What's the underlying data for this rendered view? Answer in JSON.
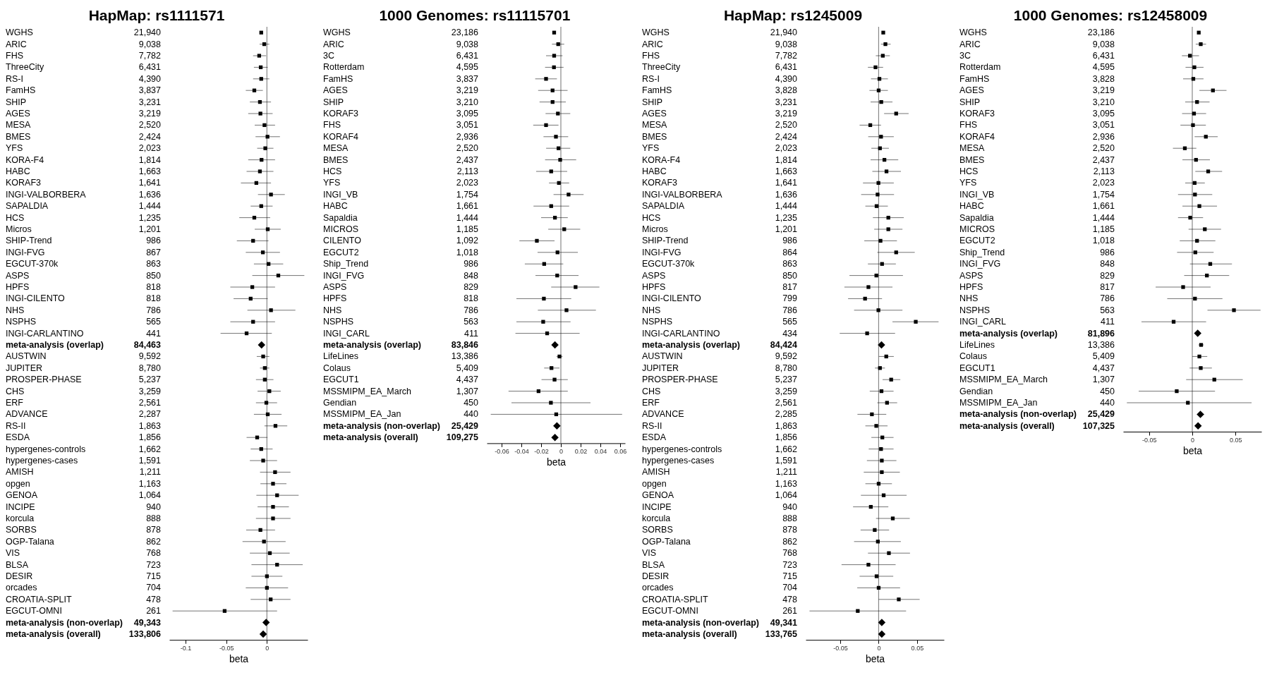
{
  "chart_data": [
    {
      "type": "scatter",
      "orientation": "horizontal",
      "title": "HapMap: rs1111571",
      "xlabel": "beta",
      "xlim": [
        -0.12,
        0.05
      ],
      "xticks": [
        -0.1,
        -0.05,
        0
      ],
      "ref_lines": [
        {
          "axis": "x",
          "value": 0,
          "color": "#888888"
        }
      ],
      "categories": [
        "WGHS",
        "ARIC",
        "FHS",
        "ThreeCity",
        "RS-I",
        "FamHS",
        "SHIP",
        "AGES",
        "MESA",
        "BMES",
        "YFS",
        "KORA-F4",
        "HABC",
        "KORAF3",
        "INGI-VALBORBERA",
        "SAPALDIA",
        "HCS",
        "Micros",
        "SHIP-Trend",
        "INGI-FVG",
        "EGCUT-370k",
        "ASPS",
        "HPFS",
        "INGI-CILENTO",
        "NHS",
        "NSPHS",
        "INGI-CARLANTINO",
        "meta-analysis (overlap)",
        "AUSTWIN",
        "JUPITER",
        "PROSPER-PHASE",
        "CHS",
        "ERF",
        "ADVANCE",
        "RS-II",
        "ESDA",
        "hypergenes-controls",
        "hypergenes-cases",
        "AMISH",
        "opgen",
        "GENOA",
        "INCIPE",
        "korcula",
        "SORBS",
        "OGP-Talana",
        "VIS",
        "BLSA",
        "DESIR",
        "orcades",
        "CROATIA-SPLIT",
        "EGCUT-OMNI",
        "meta-analysis (non-overlap)",
        "meta-analysis (overall)"
      ],
      "y2_categories": [
        "21,940",
        "9,038",
        "7,782",
        "6,431",
        "4,390",
        "3,837",
        "3,231",
        "3,219",
        "2,520",
        "2,424",
        "2,023",
        "1,814",
        "1,663",
        "1,641",
        "1,636",
        "1,444",
        "1,235",
        "1,201",
        "986",
        "867",
        "863",
        "850",
        "818",
        "818",
        "786",
        "565",
        "441",
        "84,463",
        "9,592",
        "8,780",
        "5,237",
        "3,259",
        "2,561",
        "2,287",
        "1,863",
        "1,856",
        "1,662",
        "1,591",
        "1,211",
        "1,163",
        "1,064",
        "940",
        "888",
        "878",
        "862",
        "768",
        "723",
        "715",
        "704",
        "478",
        "261",
        "49,343",
        "133,806"
      ],
      "series": [
        {
          "color": "#000000",
          "marker": "square",
          "values": [
            -0.007,
            -0.0033,
            -0.0095,
            -0.0076,
            -0.007,
            -0.0155,
            -0.0086,
            -0.008,
            -0.003,
            0.0007,
            -0.002,
            -0.0066,
            -0.0086,
            -0.013,
            0.005,
            -0.007,
            -0.0155,
            0.001,
            -0.017,
            -0.005,
            0.002,
            0.014,
            -0.018,
            -0.02,
            0.005,
            -0.017,
            -0.025,
            null,
            -0.0046,
            -0.0026,
            -0.0026,
            0.003,
            -0.0007,
            0.001,
            0.0105,
            -0.012,
            -0.007,
            -0.0046,
            0.01,
            0.0075,
            0.0125,
            0.0075,
            0.0075,
            -0.008,
            -0.0036,
            0.0036,
            0.0125,
            0,
            0,
            0.0046,
            -0.052,
            null,
            null
          ],
          "errors": [
            null,
            [
              -0.009,
              0.003
            ],
            [
              -0.017,
              -0.001
            ],
            [
              -0.016,
              0.001
            ],
            [
              -0.017,
              0.003
            ],
            [
              -0.026,
              -0.005
            ],
            [
              -0.021,
              0.005
            ],
            [
              -0.023,
              0.007
            ],
            [
              -0.015,
              0.01
            ],
            [
              -0.014,
              0.016
            ],
            [
              -0.012,
              0.008
            ],
            [
              -0.023,
              0.01
            ],
            [
              -0.025,
              0.008
            ],
            [
              -0.032,
              0.005
            ],
            [
              -0.011,
              0.022
            ],
            [
              -0.02,
              0.007
            ],
            [
              -0.034,
              0.004
            ],
            [
              -0.015,
              0.017
            ],
            [
              -0.037,
              0.002
            ],
            [
              -0.026,
              0.016
            ],
            [
              -0.016,
              0.02
            ],
            [
              -0.018,
              0.046
            ],
            [
              -0.045,
              0.01
            ],
            [
              -0.041,
              0.001
            ],
            [
              -0.024,
              0.035
            ],
            [
              -0.045,
              0.01
            ],
            [
              -0.057,
              0.006
            ],
            null,
            [
              -0.0125,
              0.003
            ],
            [
              -0.0085,
              0.003
            ],
            [
              -0.0135,
              0.008
            ],
            [
              -0.0115,
              0.017
            ],
            [
              -0.0135,
              0.0125
            ],
            [
              -0.016,
              0.018
            ],
            [
              -0.003,
              0.025
            ],
            [
              -0.025,
              0.0007
            ],
            [
              -0.02,
              0.007
            ],
            [
              -0.021,
              0.0125
            ],
            [
              -0.0085,
              0.029
            ],
            [
              -0.008,
              0.024
            ],
            [
              -0.013,
              0.039
            ],
            [
              -0.0115,
              0.027
            ],
            [
              -0.0135,
              0.029
            ],
            [
              -0.0255,
              0.01
            ],
            [
              -0.03,
              0.023
            ],
            [
              -0.021,
              0.028
            ],
            [
              -0.019,
              0.044
            ],
            [
              -0.019,
              0.019
            ],
            [
              -0.026,
              0.026
            ],
            [
              -0.02,
              0.029
            ],
            [
              -0.116,
              0.0125
            ],
            null,
            null
          ]
        },
        {
          "color": "#000000",
          "marker": "diamond",
          "values": [
            null,
            null,
            null,
            null,
            null,
            null,
            null,
            null,
            null,
            null,
            null,
            null,
            null,
            null,
            null,
            null,
            null,
            null,
            null,
            null,
            null,
            null,
            null,
            null,
            null,
            null,
            null,
            -0.0066,
            null,
            null,
            null,
            null,
            null,
            null,
            null,
            null,
            null,
            null,
            null,
            null,
            null,
            null,
            null,
            null,
            null,
            null,
            null,
            null,
            null,
            null,
            null,
            -0.001,
            -0.0046
          ],
          "errors": [
            null,
            null,
            null,
            null,
            null,
            null,
            null,
            null,
            null,
            null,
            null,
            null,
            null,
            null,
            null,
            null,
            null,
            null,
            null,
            null,
            null,
            null,
            null,
            null,
            null,
            null,
            null,
            [
              -0.009,
              -0.004
            ],
            null,
            null,
            null,
            null,
            null,
            null,
            null,
            null,
            null,
            null,
            null,
            null,
            null,
            null,
            null,
            null,
            null,
            null,
            null,
            null,
            null,
            null,
            null,
            [
              -0.004,
              0.002
            ],
            [
              -0.006,
              -0.003
            ]
          ]
        }
      ]
    },
    {
      "type": "scatter",
      "orientation": "horizontal",
      "title": "1000 Genomes: rs11115701",
      "xlabel": "beta",
      "xlim": [
        -0.075,
        0.065
      ],
      "xticks": [
        -0.06,
        -0.04,
        -0.02,
        0,
        0.02,
        0.04,
        0.06
      ],
      "ref_lines": [
        {
          "axis": "x",
          "value": 0,
          "color": "#888888"
        }
      ],
      "categories": [
        "WGHS",
        "ARIC",
        "3C",
        "Rotterdam",
        "FamHS",
        "AGES",
        "SHIP",
        "KORAF3",
        "FHS",
        "KORAF4",
        "MESA",
        "BMES",
        "HCS",
        "YFS",
        "INGI_VB",
        "HABC",
        "Sapaldia",
        "MICROS",
        "CILENTO",
        "EGCUT2",
        "Ship_Trend",
        "INGI_FVG",
        "ASPS",
        "HPFS",
        "NHS",
        "NSPHS",
        "INGI_CARL",
        "meta-analysis (overlap)",
        "LifeLines",
        "Colaus",
        "EGCUT1",
        "MSSMIPM_EA_March",
        "Gendian",
        "MSSMIPM_EA_Jan",
        "meta-analysis (non-overlap)",
        "meta-analysis (overall)"
      ],
      "y2_categories": [
        "23,186",
        "9,038",
        "6,431",
        "4,595",
        "3,837",
        "3,219",
        "3,210",
        "3,095",
        "3,051",
        "2,936",
        "2,520",
        "2,437",
        "2,113",
        "2,023",
        "1,754",
        "1,661",
        "1,444",
        "1,185",
        "1,092",
        "1,018",
        "986",
        "848",
        "829",
        "818",
        "786",
        "563",
        "411",
        "83,846",
        "13,386",
        "5,409",
        "4,437",
        "1,307",
        "450",
        "440",
        "25,429",
        "109,275"
      ],
      "series": [
        {
          "color": "#000000",
          "marker": "square",
          "values": [
            -0.0068,
            -0.0027,
            -0.0068,
            -0.007,
            -0.015,
            -0.0084,
            -0.0084,
            -0.003,
            -0.015,
            -0.005,
            -0.0024,
            -0.0007,
            -0.0098,
            -0.002,
            0.0078,
            -0.0098,
            -0.006,
            0.0034,
            -0.0243,
            -0.0034,
            -0.0169,
            -0.0037,
            0.0149,
            -0.0172,
            0.0057,
            -0.0179,
            -0.0139,
            null,
            -0.0014,
            -0.0095,
            -0.0064,
            -0.0226,
            -0.0101,
            -0.0047,
            null,
            null
          ],
          "errors": [
            null,
            [
              -0.009,
              0.0034
            ],
            [
              -0.015,
              0.0017
            ],
            [
              -0.016,
              0.0027
            ],
            [
              -0.026,
              -0.004
            ],
            [
              -0.023,
              0.0068
            ],
            [
              -0.0216,
              0.005
            ],
            [
              -0.0155,
              0.0095
            ],
            [
              -0.028,
              -0.0024
            ],
            [
              -0.0176,
              0.0074
            ],
            [
              -0.0149,
              0.0095
            ],
            [
              -0.016,
              0.0155
            ],
            [
              -0.025,
              0.0064
            ],
            [
              -0.012,
              0.0084
            ],
            [
              -0.0074,
              0.023
            ],
            [
              -0.0277,
              0.0084
            ],
            [
              -0.02,
              0.007
            ],
            [
              -0.0128,
              0.0196
            ],
            [
              -0.042,
              -0.0064
            ],
            [
              -0.0236,
              0.0172
            ],
            [
              -0.0365,
              0.0024
            ],
            [
              -0.0257,
              0.0179
            ],
            [
              -0.0098,
              0.039
            ],
            [
              -0.045,
              0.0105
            ],
            [
              -0.0233,
              0.0355
            ],
            [
              -0.045,
              0.0098
            ],
            [
              -0.046,
              0.019
            ],
            null,
            [
              -0.0044,
              0.0017
            ],
            [
              -0.0169,
              -0.0014
            ],
            [
              -0.0196,
              0.007
            ],
            [
              -0.053,
              0.007
            ],
            [
              -0.05,
              0.03
            ],
            [
              -0.071,
              0.062
            ],
            null,
            null
          ]
        },
        {
          "color": "#000000",
          "marker": "diamond",
          "values": [
            null,
            null,
            null,
            null,
            null,
            null,
            null,
            null,
            null,
            null,
            null,
            null,
            null,
            null,
            null,
            null,
            null,
            null,
            null,
            null,
            null,
            null,
            null,
            null,
            null,
            null,
            null,
            -0.006,
            null,
            null,
            null,
            null,
            null,
            null,
            -0.004,
            -0.006
          ],
          "errors": [
            null,
            null,
            null,
            null,
            null,
            null,
            null,
            null,
            null,
            null,
            null,
            null,
            null,
            null,
            null,
            null,
            null,
            null,
            null,
            null,
            null,
            null,
            null,
            null,
            null,
            null,
            null,
            [
              -0.0084,
              -0.0037
            ],
            null,
            null,
            null,
            null,
            null,
            null,
            [
              -0.0074,
              -0.0007
            ],
            [
              -0.008,
              -0.004
            ]
          ]
        }
      ]
    },
    {
      "type": "scatter",
      "orientation": "horizontal",
      "title": "HapMap: rs1245009",
      "xlabel": "beta",
      "xlim": [
        -0.095,
        0.085
      ],
      "xticks": [
        -0.05,
        0,
        0.05
      ],
      "ref_lines": [
        {
          "axis": "x",
          "value": 0,
          "color": "#888888"
        }
      ],
      "categories": [
        "WGHS",
        "ARIC",
        "FHS",
        "ThreeCity",
        "RS-I",
        "FamHS",
        "SHIP",
        "AGES",
        "MESA",
        "BMES",
        "YFS",
        "KORA-F4",
        "HABC",
        "KORAF3",
        "INGI-VALBORBERA",
        "SAPALDIA",
        "HCS",
        "Micros",
        "SHIP-Trend",
        "INGI-FVG",
        "EGCUT-370k",
        "ASPS",
        "HPFS",
        "INGI-CILENTO",
        "NHS",
        "NSPHS",
        "INGI-CARLANTINO",
        "meta-analysis (overlap)",
        "AUSTWIN",
        "JUPITER",
        "PROSPER-PHASE",
        "CHS",
        "ERF",
        "ADVANCE",
        "RS-II",
        "ESDA",
        "hypergenes-controls",
        "hypergenes-cases",
        "AMISH",
        "opgen",
        "GENOA",
        "INCIPE",
        "korcula",
        "SORBS",
        "OGP-Talana",
        "VIS",
        "BLSA",
        "DESIR",
        "orcades",
        "CROATIA-SPLIT",
        "EGCUT-OMNI",
        "meta-analysis (non-overlap)",
        "meta-analysis (overall)"
      ],
      "y2_categories": [
        "21,940",
        "9,038",
        "7,782",
        "6,431",
        "4,390",
        "3,828",
        "3,231",
        "3,219",
        "2,520",
        "2,424",
        "2,023",
        "1,814",
        "1,663",
        "1,641",
        "1,636",
        "1,444",
        "1,235",
        "1,201",
        "986",
        "864",
        "863",
        "850",
        "817",
        "799",
        "786",
        "565",
        "434",
        "84,424",
        "9,592",
        "8,780",
        "5,237",
        "3,259",
        "2,561",
        "2,285",
        "1,863",
        "1,856",
        "1,662",
        "1,591",
        "1,211",
        "1,163",
        "1,064",
        "940",
        "888",
        "878",
        "862",
        "768",
        "723",
        "715",
        "704",
        "478",
        "261",
        "49,341",
        "133,765"
      ],
      "series": [
        {
          "color": "#000000",
          "marker": "square",
          "values": [
            0.006,
            0.0088,
            0.0054,
            -0.0041,
            0.001,
            0,
            0.0034,
            0.0228,
            -0.0109,
            0.0031,
            0.0017,
            0.0075,
            0.0102,
            -0.0003,
            -0.0014,
            -0.0027,
            0.0126,
            0.0126,
            0.0024,
            0.0228,
            0.0044,
            -0.003,
            -0.0133,
            -0.0177,
            -0.0003,
            0.0483,
            -0.015,
            null,
            0.0099,
            0.0017,
            0.0163,
            0.0037,
            0.0109,
            -0.0088,
            -0.0031,
            0.0048,
            0.0031,
            0.0041,
            0.0041,
            0,
            0.0065,
            -0.0102,
            0.0184,
            -0.0051,
            -0.001,
            0.0133,
            -0.0133,
            -0.0027,
            0,
            0.0262,
            -0.0272,
            null,
            null
          ],
          "errors": [
            null,
            [
              0.003,
              0.0156
            ],
            [
              -0.0037,
              0.0146
            ],
            [
              -0.014,
              0.0058
            ],
            [
              -0.01,
              0.012
            ],
            [
              -0.012,
              0.012
            ],
            [
              -0.0105,
              0.018
            ],
            [
              0.0071,
              0.039
            ],
            [
              -0.0248,
              0.0031
            ],
            [
              -0.0136,
              0.0197
            ],
            [
              -0.0095,
              0.0133
            ],
            [
              -0.0105,
              0.0255
            ],
            [
              -0.0082,
              0.029
            ],
            [
              -0.0204,
              0.0197
            ],
            [
              -0.0228,
              0.02
            ],
            [
              -0.0173,
              0.012
            ],
            [
              -0.0075,
              0.0327
            ],
            [
              -0.0058,
              0.031
            ],
            [
              -0.0187,
              0.0238
            ],
            [
              -0.0017,
              0.047
            ],
            [
              -0.014,
              0.0224
            ],
            [
              -0.038,
              0.0316
            ],
            [
              -0.0446,
              0.018
            ],
            [
              -0.0398,
              0.0044
            ],
            [
              -0.032,
              0.031
            ],
            [
              0.018,
              0.078
            ],
            [
              -0.0507,
              0.0214
            ],
            null,
            [
              0.0003,
              0.0197
            ],
            [
              -0.0048,
              0.0082
            ],
            [
              0.0051,
              0.0282
            ],
            [
              -0.0116,
              0.0194
            ],
            [
              -0.0017,
              0.0241
            ],
            [
              -0.0276,
              0.0099
            ],
            [
              -0.0173,
              0.0116
            ],
            [
              -0.0095,
              0.0194
            ],
            [
              -0.0129,
              0.0194
            ],
            [
              -0.0153,
              0.0231
            ],
            [
              -0.0194,
              0.0276
            ],
            [
              -0.0173,
              0.0173
            ],
            [
              -0.0231,
              0.0364
            ],
            [
              -0.0333,
              0.0126
            ],
            [
              -0.0034,
              0.0405
            ],
            [
              -0.0235,
              0.0136
            ],
            [
              -0.032,
              0.0289
            ],
            [
              -0.0139,
              0.0408
            ],
            [
              -0.0483,
              0.0221
            ],
            [
              -0.0248,
              0.019
            ],
            [
              -0.0279,
              0.0279
            ],
            [
              0,
              0.0534
            ],
            [
              -0.09,
              0.0357
            ],
            null,
            null
          ]
        },
        {
          "color": "#000000",
          "marker": "diamond",
          "values": [
            null,
            null,
            null,
            null,
            null,
            null,
            null,
            null,
            null,
            null,
            null,
            null,
            null,
            null,
            null,
            null,
            null,
            null,
            null,
            null,
            null,
            null,
            null,
            null,
            null,
            null,
            null,
            0.0037,
            null,
            null,
            null,
            null,
            null,
            null,
            null,
            null,
            null,
            null,
            null,
            null,
            null,
            null,
            null,
            null,
            null,
            null,
            null,
            null,
            null,
            null,
            null,
            0.0041,
            0.0041
          ],
          "errors": [
            null,
            null,
            null,
            null,
            null,
            null,
            null,
            null,
            null,
            null,
            null,
            null,
            null,
            null,
            null,
            null,
            null,
            null,
            null,
            null,
            null,
            null,
            null,
            null,
            null,
            null,
            null,
            [
              0.0012,
              0.0062
            ],
            null,
            null,
            null,
            null,
            null,
            null,
            null,
            null,
            null,
            null,
            null,
            null,
            null,
            null,
            null,
            null,
            null,
            null,
            null,
            null,
            null,
            null,
            null,
            [
              0.0017,
              0.0065
            ],
            [
              0.0027,
              0.0054
            ]
          ]
        }
      ]
    },
    {
      "type": "scatter",
      "orientation": "horizontal",
      "title": "1000 Genomes: rs12458009",
      "xlabel": "beta",
      "xlim": [
        -0.08,
        0.08
      ],
      "xticks": [
        -0.05,
        0,
        0.05
      ],
      "ref_lines": [
        {
          "axis": "x",
          "value": 0,
          "color": "#888888"
        }
      ],
      "categories": [
        "WGHS",
        "ARIC",
        "3C",
        "Rotterdam",
        "FamHS",
        "AGES",
        "SHIP",
        "KORAF3",
        "FHS",
        "KORAF4",
        "MESA",
        "BMES",
        "HCS",
        "YFS",
        "INGI_VB",
        "HABC",
        "Sapaldia",
        "MICROS",
        "EGCUT2",
        "Ship_Trend",
        "INGI_FVG",
        "ASPS",
        "HPFS",
        "NHS",
        "NSPHS",
        "INGI_CARL",
        "meta-analysis (overlap)",
        "LifeLines",
        "Colaus",
        "EGCUT1",
        "MSSMIPM_EA_March",
        "Gendian",
        "MSSMIPM_EA_Jan",
        "meta-analysis (non-overlap)",
        "meta-analysis (overall)"
      ],
      "y2_categories": [
        "23,186",
        "9,038",
        "6,431",
        "4,595",
        "3,828",
        "3,219",
        "3,210",
        "3,095",
        "3,051",
        "2,936",
        "2,520",
        "2,437",
        "2,113",
        "2,023",
        "1,754",
        "1,661",
        "1,444",
        "1,185",
        "1,018",
        "986",
        "848",
        "829",
        "817",
        "786",
        "563",
        "411",
        "81,896",
        "13,386",
        "5,409",
        "4,437",
        "1,307",
        "450",
        "440",
        "25,429",
        "107,325"
      ],
      "series": [
        {
          "color": "#000000",
          "marker": "square",
          "values": [
            0.0075,
            0.0098,
            -0.0027,
            0.0024,
            0.0012,
            0.0239,
            0.0055,
            0.002,
            0.0008,
            0.0157,
            -0.0086,
            0.0043,
            0.0184,
            0.0027,
            0.0031,
            0.0082,
            -0.0024,
            0.0145,
            0.0055,
            0.0035,
            0.0208,
            0.0169,
            -0.0106,
            0.0031,
            0.0482,
            -0.0216,
            null,
            0.0102,
            0.0082,
            0.0098,
            0.0255,
            -0.018,
            -0.0051,
            null,
            null
          ],
          "errors": [
            null,
            [
              0.004,
              0.016
            ],
            [
              -0.012,
              0.0078
            ],
            [
              -0.0078,
              0.013
            ],
            [
              -0.0106,
              0.013
            ],
            [
              0.0082,
              0.0396
            ],
            [
              -0.0082,
              0.02
            ],
            [
              -0.0118,
              0.016
            ],
            [
              -0.0137,
              0.0157
            ],
            [
              0.0027,
              0.0294
            ],
            [
              -0.0224,
              0.0047
            ],
            [
              -0.0114,
              0.0204
            ],
            [
              0.0035,
              0.0345
            ],
            [
              -0.0082,
              0.0145
            ],
            [
              -0.0165,
              0.0231
            ],
            [
              -0.0114,
              0.0286
            ],
            [
              -0.0165,
              0.0125
            ],
            [
              -0.0043,
              0.0333
            ],
            [
              -0.0145,
              0.0267
            ],
            [
              -0.0176,
              0.0247
            ],
            [
              -0.0027,
              0.0459
            ],
            [
              -0.0094,
              0.0427
            ],
            [
              -0.0424,
              0.0212
            ],
            [
              -0.029,
              0.0349
            ],
            [
              0.0176,
              0.079
            ],
            [
              -0.0588,
              0.016
            ],
            null,
            [
              0.0072,
              0.0132
            ],
            [
              0,
              0.0173
            ],
            [
              -0.0031,
              0.0227
            ],
            [
              -0.0071,
              0.0584
            ],
            [
              -0.062,
              0.0263
            ],
            [
              -0.0757,
              0.0686
            ],
            null,
            null
          ]
        },
        {
          "color": "#000000",
          "marker": "diamond",
          "values": [
            null,
            null,
            null,
            null,
            null,
            null,
            null,
            null,
            null,
            null,
            null,
            null,
            null,
            null,
            null,
            null,
            null,
            null,
            null,
            null,
            null,
            null,
            null,
            null,
            null,
            null,
            0.0063,
            null,
            null,
            null,
            null,
            null,
            null,
            0.0094,
            0.0067
          ],
          "errors": [
            null,
            null,
            null,
            null,
            null,
            null,
            null,
            null,
            null,
            null,
            null,
            null,
            null,
            null,
            null,
            null,
            null,
            null,
            null,
            null,
            null,
            null,
            null,
            null,
            null,
            null,
            [
              0.0038,
              0.0088
            ],
            null,
            null,
            null,
            null,
            null,
            null,
            [
              0.0055,
              0.0137
            ],
            [
              0.0043,
              0.009
            ]
          ]
        }
      ]
    }
  ]
}
